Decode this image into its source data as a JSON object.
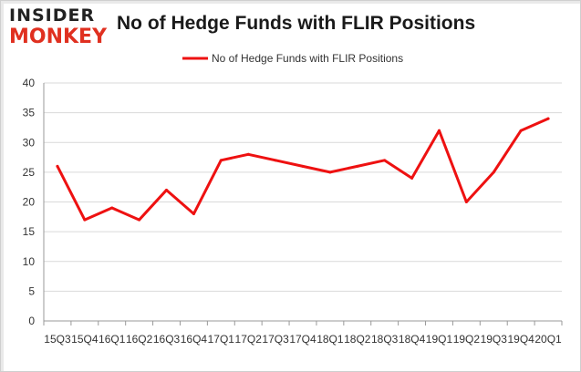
{
  "logo": {
    "line1": "INSIDER",
    "line2": "MONKEY"
  },
  "colors": {
    "series": "#ee1111",
    "grid": "#d9d9d9",
    "axis": "#999999",
    "logo_red": "#e03020"
  },
  "chart_data": {
    "type": "line",
    "title": "No of Hedge Funds with FLIR Positions",
    "xlabel": "",
    "ylabel": "",
    "ylim": [
      0,
      40
    ],
    "yticks": [
      0,
      5,
      10,
      15,
      20,
      25,
      30,
      35,
      40
    ],
    "grid": true,
    "legend": "top-center",
    "categories": [
      "15Q3",
      "15Q4",
      "16Q1",
      "16Q2",
      "16Q3",
      "16Q4",
      "17Q1",
      "17Q2",
      "17Q3",
      "17Q4",
      "18Q1",
      "18Q2",
      "18Q3",
      "18Q4",
      "19Q1",
      "19Q2",
      "19Q3",
      "19Q4",
      "20Q1"
    ],
    "series": [
      {
        "name": "No of Hedge Funds with FLIR Positions",
        "values": [
          26,
          17,
          19,
          17,
          22,
          18,
          27,
          28,
          27,
          26,
          25,
          26,
          27,
          24,
          32,
          20,
          25,
          32,
          34
        ]
      }
    ]
  }
}
